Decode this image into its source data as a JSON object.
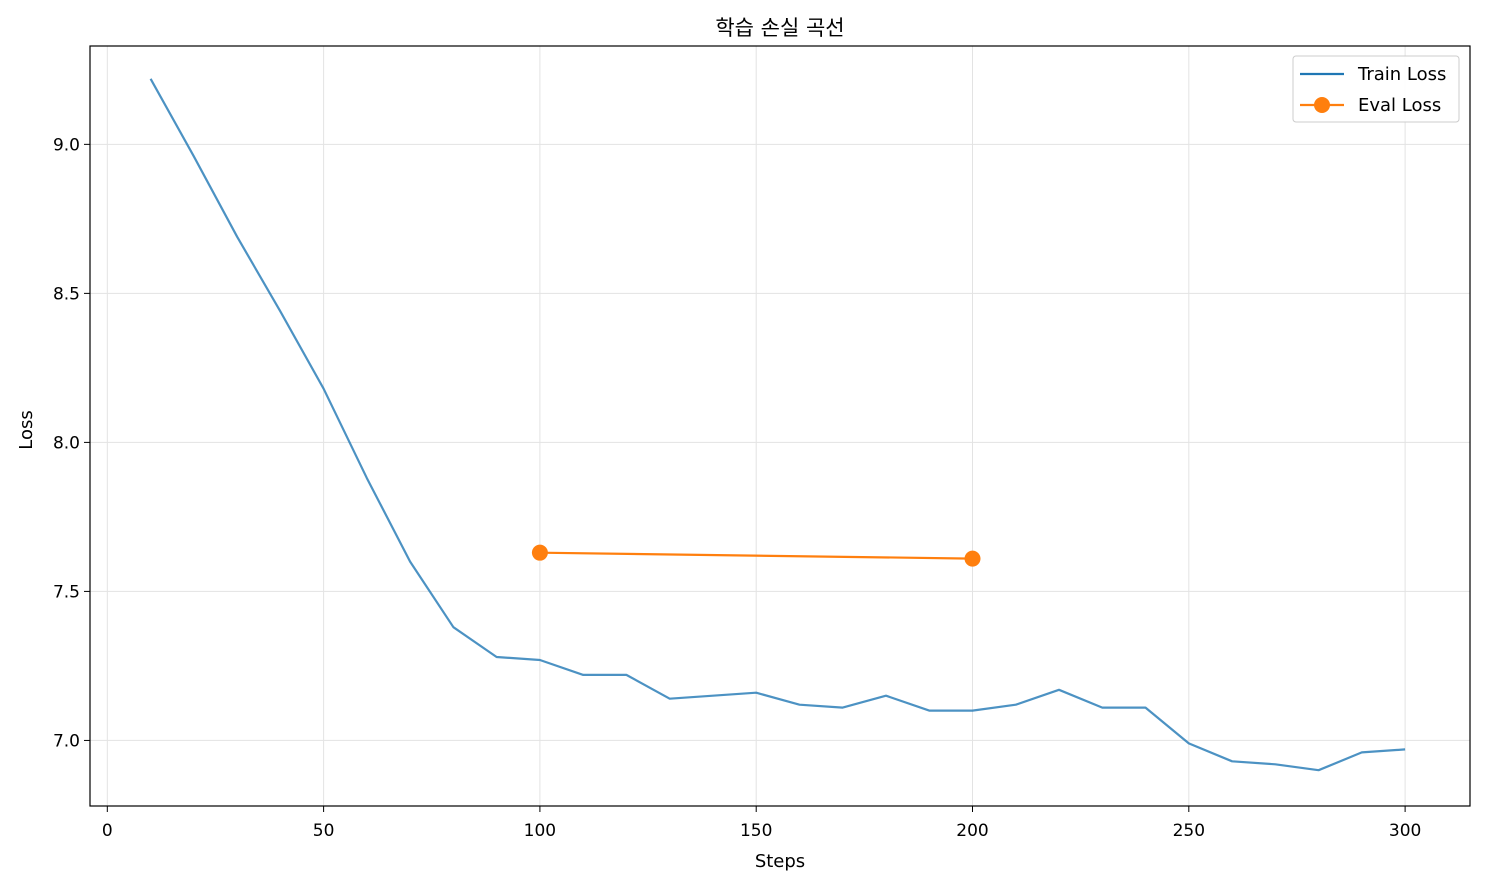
{
  "chart_data": {
    "type": "line",
    "title": "학습 손실 곡선",
    "xlabel": "Steps",
    "ylabel": "Loss",
    "xlim": [
      -4,
      315
    ],
    "ylim": [
      6.78,
      9.33
    ],
    "xticks": [
      0,
      50,
      100,
      150,
      200,
      250,
      300
    ],
    "yticks": [
      7.0,
      7.5,
      8.0,
      8.5,
      9.0
    ],
    "xtick_labels": [
      "0",
      "50",
      "100",
      "150",
      "200",
      "250",
      "300"
    ],
    "ytick_labels": [
      "7.0",
      "7.5",
      "8.0",
      "8.5",
      "9.0"
    ],
    "grid": true,
    "legend_position": "top-right",
    "series": [
      {
        "name": "Train Loss",
        "color": "#1f77b4",
        "marker": "none",
        "x": [
          10,
          20,
          30,
          40,
          50,
          60,
          70,
          80,
          90,
          100,
          110,
          120,
          130,
          140,
          150,
          160,
          170,
          180,
          190,
          200,
          210,
          220,
          230,
          240,
          250,
          260,
          270,
          280,
          290,
          300
        ],
        "y": [
          9.22,
          8.96,
          8.69,
          8.44,
          8.18,
          7.88,
          7.6,
          7.38,
          7.28,
          7.27,
          7.22,
          7.22,
          7.14,
          7.15,
          7.16,
          7.12,
          7.11,
          7.15,
          7.1,
          7.1,
          7.12,
          7.17,
          7.11,
          7.11,
          6.99,
          6.93,
          6.92,
          6.9,
          6.96,
          6.97
        ]
      },
      {
        "name": "Eval Loss",
        "color": "#ff7f0e",
        "marker": "circle",
        "x": [
          100,
          200
        ],
        "y": [
          7.63,
          7.61
        ]
      }
    ]
  }
}
